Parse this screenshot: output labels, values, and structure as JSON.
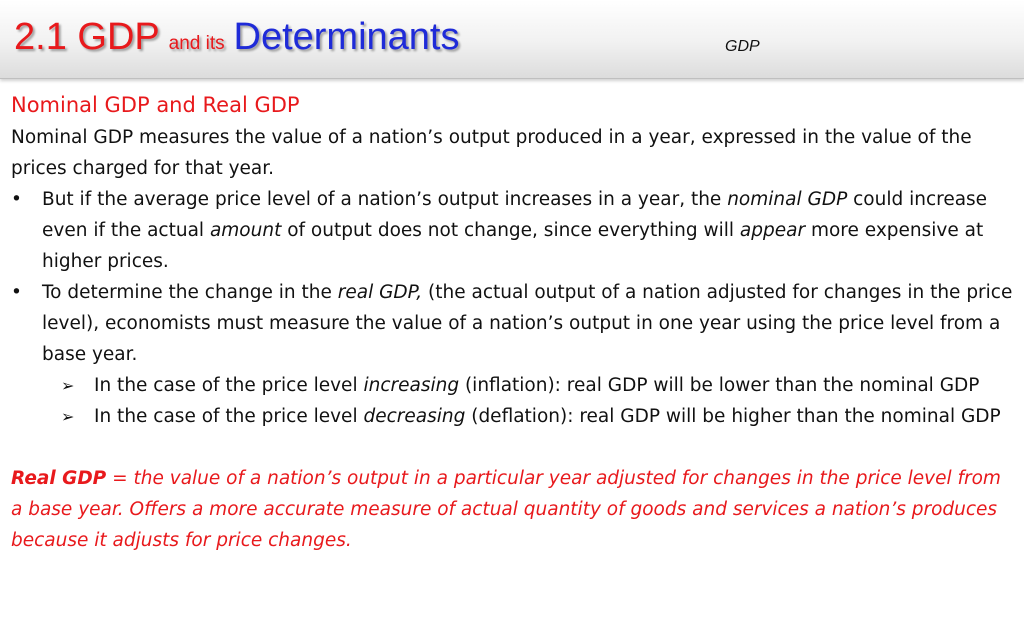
{
  "header": {
    "title_number": "2.1 GDP",
    "title_connector": "and its",
    "title_main": "Determinants",
    "topic_tag": "GDP"
  },
  "section": {
    "heading": "Nominal GDP and Real GDP",
    "intro": "Nominal GDP measures the value of a nation’s output produced in a year, expressed in the value of the prices charged for that year."
  },
  "bullets": [
    {
      "marker": "•",
      "segments": [
        "But if the average price level of a nation’s output increases in a year, the ",
        "nominal GDP",
        " could increase even if the actual ",
        "amount",
        " of output does not change, since everything will ",
        "appear",
        " more expensive at higher prices."
      ]
    },
    {
      "marker": "•",
      "segments": [
        "To determine the change in the ",
        "real GDP,",
        " (the actual output of a nation adjusted for changes in the price level), economists must measure the value of a nation’s output in one year using the price level from a base year."
      ]
    }
  ],
  "sub_bullets": [
    {
      "marker": "➢",
      "segments": [
        "In the case of the price level ",
        "increasing",
        " (inflation): real GDP will be lower than the nominal GDP"
      ]
    },
    {
      "marker": "➢",
      "segments": [
        "In the case of the price level ",
        "decreasing",
        " (deflation): real GDP will be higher than the nominal GDP"
      ]
    }
  ],
  "definition": {
    "term": "Real GDP",
    "text": " = the value of a nation’s output in a particular year adjusted for changes in the price level from a base year. Offers a more accurate measure of actual quantity of goods and services a nation’s produces because it adjusts for price changes."
  },
  "colors": {
    "accent_red": "#e8191c",
    "accent_blue": "#1f2bd8",
    "body_text": "#111111"
  }
}
